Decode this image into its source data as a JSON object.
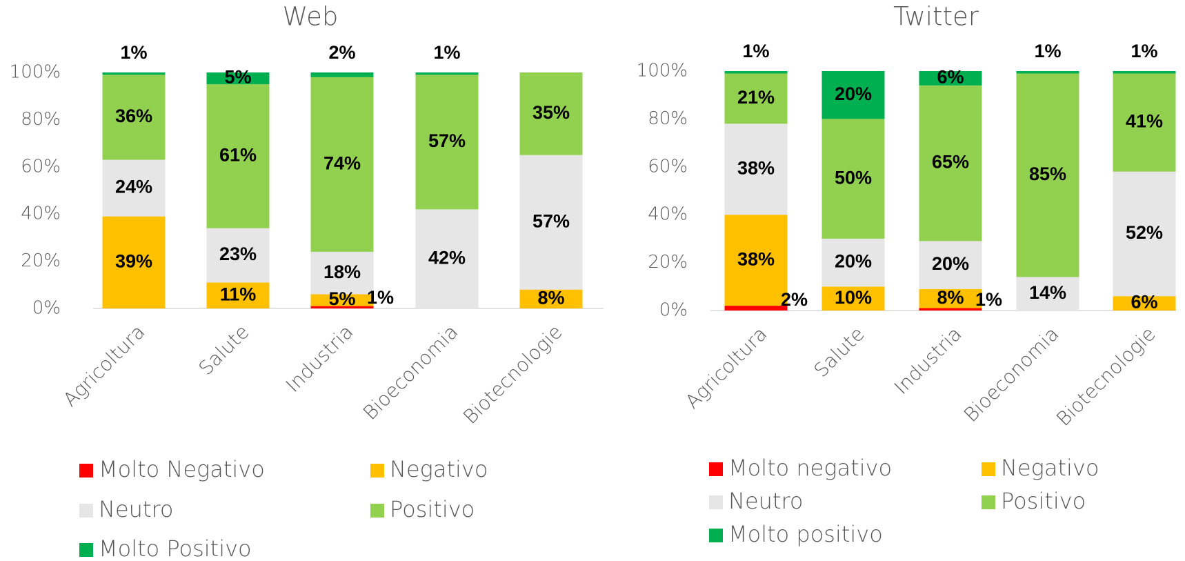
{
  "chart_data": [
    {
      "type": "bar",
      "stacked": true,
      "title": "Web",
      "categories": [
        "Agricoltura",
        "Salute",
        "Industria",
        "Bioeconomia",
        "Biotecnologie"
      ],
      "series": [
        {
          "name": "Molto Negativo",
          "color": "#ff0000",
          "values": [
            0,
            0,
            1,
            0,
            0
          ],
          "value_labels": [
            null,
            null,
            "1%",
            null,
            null
          ]
        },
        {
          "name": "Negativo",
          "color": "#ffc000",
          "values": [
            39,
            11,
            5,
            0,
            8
          ],
          "value_labels": [
            "39%",
            "11%",
            "5%",
            null,
            "8%"
          ]
        },
        {
          "name": "Neutro",
          "color": "#e7e6e6",
          "values": [
            24,
            23,
            18,
            42,
            57
          ],
          "value_labels": [
            "24%",
            "23%",
            "18%",
            "42%",
            "57%"
          ]
        },
        {
          "name": "Positivo",
          "color": "#92d050",
          "values": [
            36,
            61,
            74,
            57,
            35
          ],
          "value_labels": [
            "36%",
            "61%",
            "74%",
            "57%",
            "35%"
          ]
        },
        {
          "name": "Molto Positivo",
          "color": "#00b050",
          "values": [
            1,
            5,
            2,
            1,
            0
          ],
          "value_labels": [
            "1%",
            "5%",
            "2%",
            "1%",
            null
          ]
        }
      ],
      "ylim": [
        0,
        100
      ],
      "yticks": [
        {
          "value": 0,
          "label": "0%"
        },
        {
          "value": 20,
          "label": "20%"
        },
        {
          "value": 40,
          "label": "40%"
        },
        {
          "value": 60,
          "label": "60%"
        },
        {
          "value": 80,
          "label": "80%"
        },
        {
          "value": 100,
          "label": "100%"
        }
      ],
      "grid": false,
      "legend": "bottom"
    },
    {
      "type": "bar",
      "stacked": true,
      "title": "Twitter",
      "categories": [
        "Agricoltura",
        "Salute",
        "Industria",
        "Bioeconomia",
        "Biotecnologie"
      ],
      "series": [
        {
          "name": "Molto negativo",
          "color": "#ff0000",
          "values": [
            2,
            0,
            1,
            0,
            0
          ],
          "value_labels": [
            "2%",
            null,
            "1%",
            null,
            null
          ]
        },
        {
          "name": "Negativo",
          "color": "#ffc000",
          "values": [
            38,
            10,
            8,
            0,
            6
          ],
          "value_labels": [
            "38%",
            "10%",
            "8%",
            null,
            "6%"
          ]
        },
        {
          "name": "Neutro",
          "color": "#e7e6e6",
          "values": [
            38,
            20,
            20,
            14,
            52
          ],
          "value_labels": [
            "38%",
            "20%",
            "20%",
            "14%",
            "52%"
          ]
        },
        {
          "name": "Positivo",
          "color": "#92d050",
          "values": [
            21,
            50,
            65,
            85,
            41
          ],
          "value_labels": [
            "21%",
            "50%",
            "65%",
            "85%",
            "41%"
          ]
        },
        {
          "name": "Molto positivo",
          "color": "#00b050",
          "values": [
            1,
            20,
            6,
            1,
            1
          ],
          "value_labels": [
            "1%",
            "20%",
            "6%",
            "1%",
            "1%"
          ]
        }
      ],
      "ylim": [
        0,
        100
      ],
      "yticks": [
        {
          "value": 0,
          "label": "0%"
        },
        {
          "value": 20,
          "label": "20%"
        },
        {
          "value": 40,
          "label": "40%"
        },
        {
          "value": 60,
          "label": "60%"
        },
        {
          "value": 80,
          "label": "80%"
        },
        {
          "value": 100,
          "label": "100%"
        }
      ],
      "grid": false,
      "legend": "bottom"
    }
  ]
}
